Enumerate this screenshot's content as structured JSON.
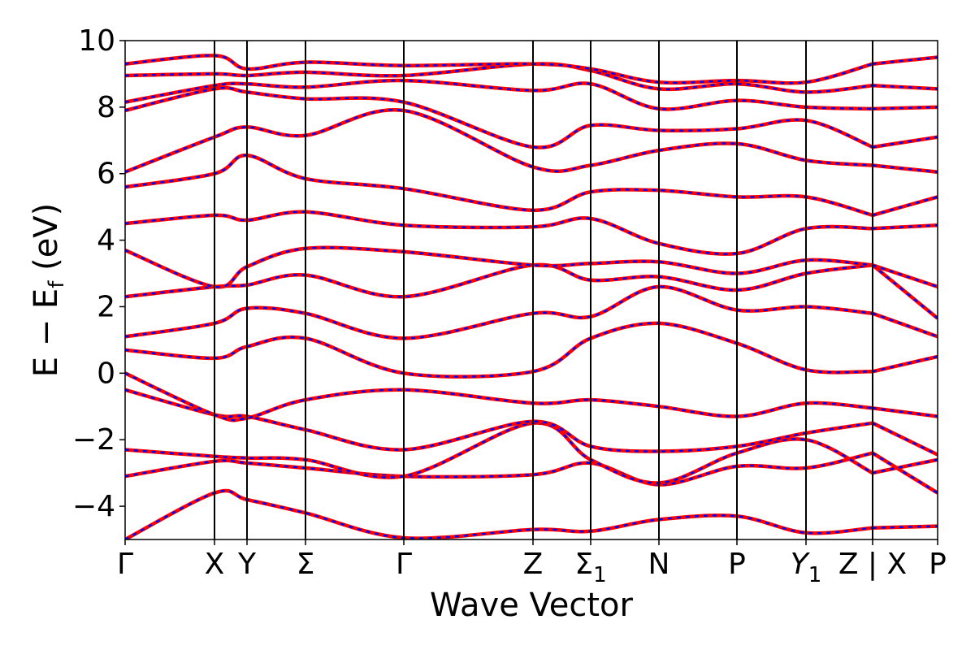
{
  "chart_data": {
    "type": "line",
    "title": "",
    "xlabel": "Wave Vector",
    "ylabel": "E − E_f (eV)",
    "ylabel_parts": {
      "lead": "E − E",
      "sub": "f",
      "tail": " (eV)"
    },
    "xlim": [
      0,
      10
    ],
    "ylim": [
      -5,
      10
    ],
    "yticks": [
      -4,
      -2,
      0,
      2,
      4,
      6,
      8,
      10
    ],
    "ytick_labels": [
      "−4",
      "−2",
      "0",
      "2",
      "4",
      "6",
      "8",
      "10"
    ],
    "kpoints": [
      {
        "x": 0.0,
        "label": "Γ",
        "sub": ""
      },
      {
        "x": 1.1,
        "label": "X",
        "sub": ""
      },
      {
        "x": 1.5,
        "label": "Y",
        "sub": ""
      },
      {
        "x": 2.22,
        "label": "Σ",
        "sub": ""
      },
      {
        "x": 3.43,
        "label": "Γ",
        "sub": ""
      },
      {
        "x": 5.02,
        "label": "Z",
        "sub": ""
      },
      {
        "x": 5.73,
        "label": "Σ",
        "sub": "1"
      },
      {
        "x": 6.57,
        "label": "N",
        "sub": ""
      },
      {
        "x": 7.53,
        "label": "P",
        "sub": ""
      },
      {
        "x": 8.38,
        "label": "Y",
        "sub": "1",
        "italic": true
      },
      {
        "x": 9.2,
        "label": "Z | X",
        "sub": ""
      },
      {
        "x": 10.0,
        "label": "P",
        "sub": ""
      }
    ],
    "segment_breaks": [
      9.2
    ],
    "series_styles": [
      {
        "name": "",
        "color": "#ff0000",
        "linestyle": "solid"
      },
      {
        "name": "",
        "color": "#0000ff",
        "linestyle": "dashed"
      }
    ],
    "kpoint_energies": [
      [
        -5.0,
        -3.6,
        -3.8,
        -4.2,
        -4.95,
        -4.7,
        -4.75,
        -4.4,
        -4.3,
        -4.8,
        -4.65,
        -4.6,
        -4.3
      ],
      [
        -3.1,
        -2.65,
        -2.7,
        -2.85,
        -3.1,
        -3.05,
        -2.7,
        -3.35,
        -2.8,
        -2.85,
        -2.4,
        -3.6,
        -2.75
      ],
      [
        -2.3,
        -2.5,
        -2.55,
        -2.6,
        -3.1,
        -1.5,
        -2.6,
        -3.3,
        -2.4,
        -2.0,
        -3.0,
        -2.6,
        -2.4
      ],
      [
        -0.5,
        -1.25,
        -1.3,
        -1.7,
        -2.3,
        -1.45,
        -2.2,
        -2.35,
        -2.2,
        -1.8,
        -1.5,
        -2.45,
        -1.6
      ],
      [
        0.0,
        -1.25,
        -1.35,
        -0.8,
        -0.5,
        -0.9,
        -0.8,
        -1.0,
        -1.3,
        -0.9,
        -1.05,
        -1.3,
        -1.25
      ],
      [
        0.7,
        0.45,
        0.8,
        1.05,
        0.0,
        0.05,
        1.05,
        1.5,
        0.9,
        0.1,
        0.05,
        0.5,
        0.95
      ],
      [
        1.1,
        1.5,
        1.95,
        1.8,
        1.05,
        1.8,
        1.7,
        2.6,
        1.9,
        2.0,
        1.8,
        1.1,
        1.8
      ],
      [
        2.3,
        2.6,
        2.65,
        2.95,
        2.3,
        3.25,
        2.8,
        2.9,
        2.5,
        3.0,
        3.25,
        1.65,
        2.5
      ],
      [
        3.7,
        2.6,
        3.2,
        3.75,
        3.65,
        3.25,
        3.3,
        3.35,
        3.0,
        3.4,
        3.25,
        2.6,
        3.05
      ],
      [
        4.5,
        4.75,
        4.6,
        4.85,
        4.45,
        4.4,
        4.65,
        3.9,
        3.6,
        4.35,
        4.35,
        4.45,
        4.2
      ],
      [
        5.6,
        6.0,
        6.55,
        5.85,
        5.55,
        4.9,
        5.45,
        5.5,
        5.3,
        5.3,
        4.75,
        5.3,
        4.85
      ],
      [
        6.05,
        7.1,
        7.4,
        7.15,
        7.9,
        6.2,
        6.25,
        6.7,
        6.9,
        6.4,
        6.25,
        6.05,
        5.35
      ],
      [
        7.9,
        8.55,
        8.45,
        8.25,
        8.15,
        6.8,
        7.45,
        7.3,
        7.35,
        7.6,
        6.8,
        7.1,
        6.85
      ],
      [
        8.15,
        8.65,
        8.7,
        8.6,
        8.8,
        8.5,
        8.7,
        7.95,
        8.2,
        8.0,
        7.95,
        8.0,
        7.4
      ],
      [
        8.95,
        9.0,
        8.95,
        9.05,
        8.95,
        9.3,
        9.1,
        8.55,
        8.7,
        8.45,
        8.65,
        8.55,
        8.1
      ],
      [
        9.3,
        9.55,
        9.15,
        9.35,
        9.25,
        9.3,
        9.15,
        8.75,
        8.8,
        8.75,
        9.3,
        9.5,
        8.8
      ]
    ]
  }
}
